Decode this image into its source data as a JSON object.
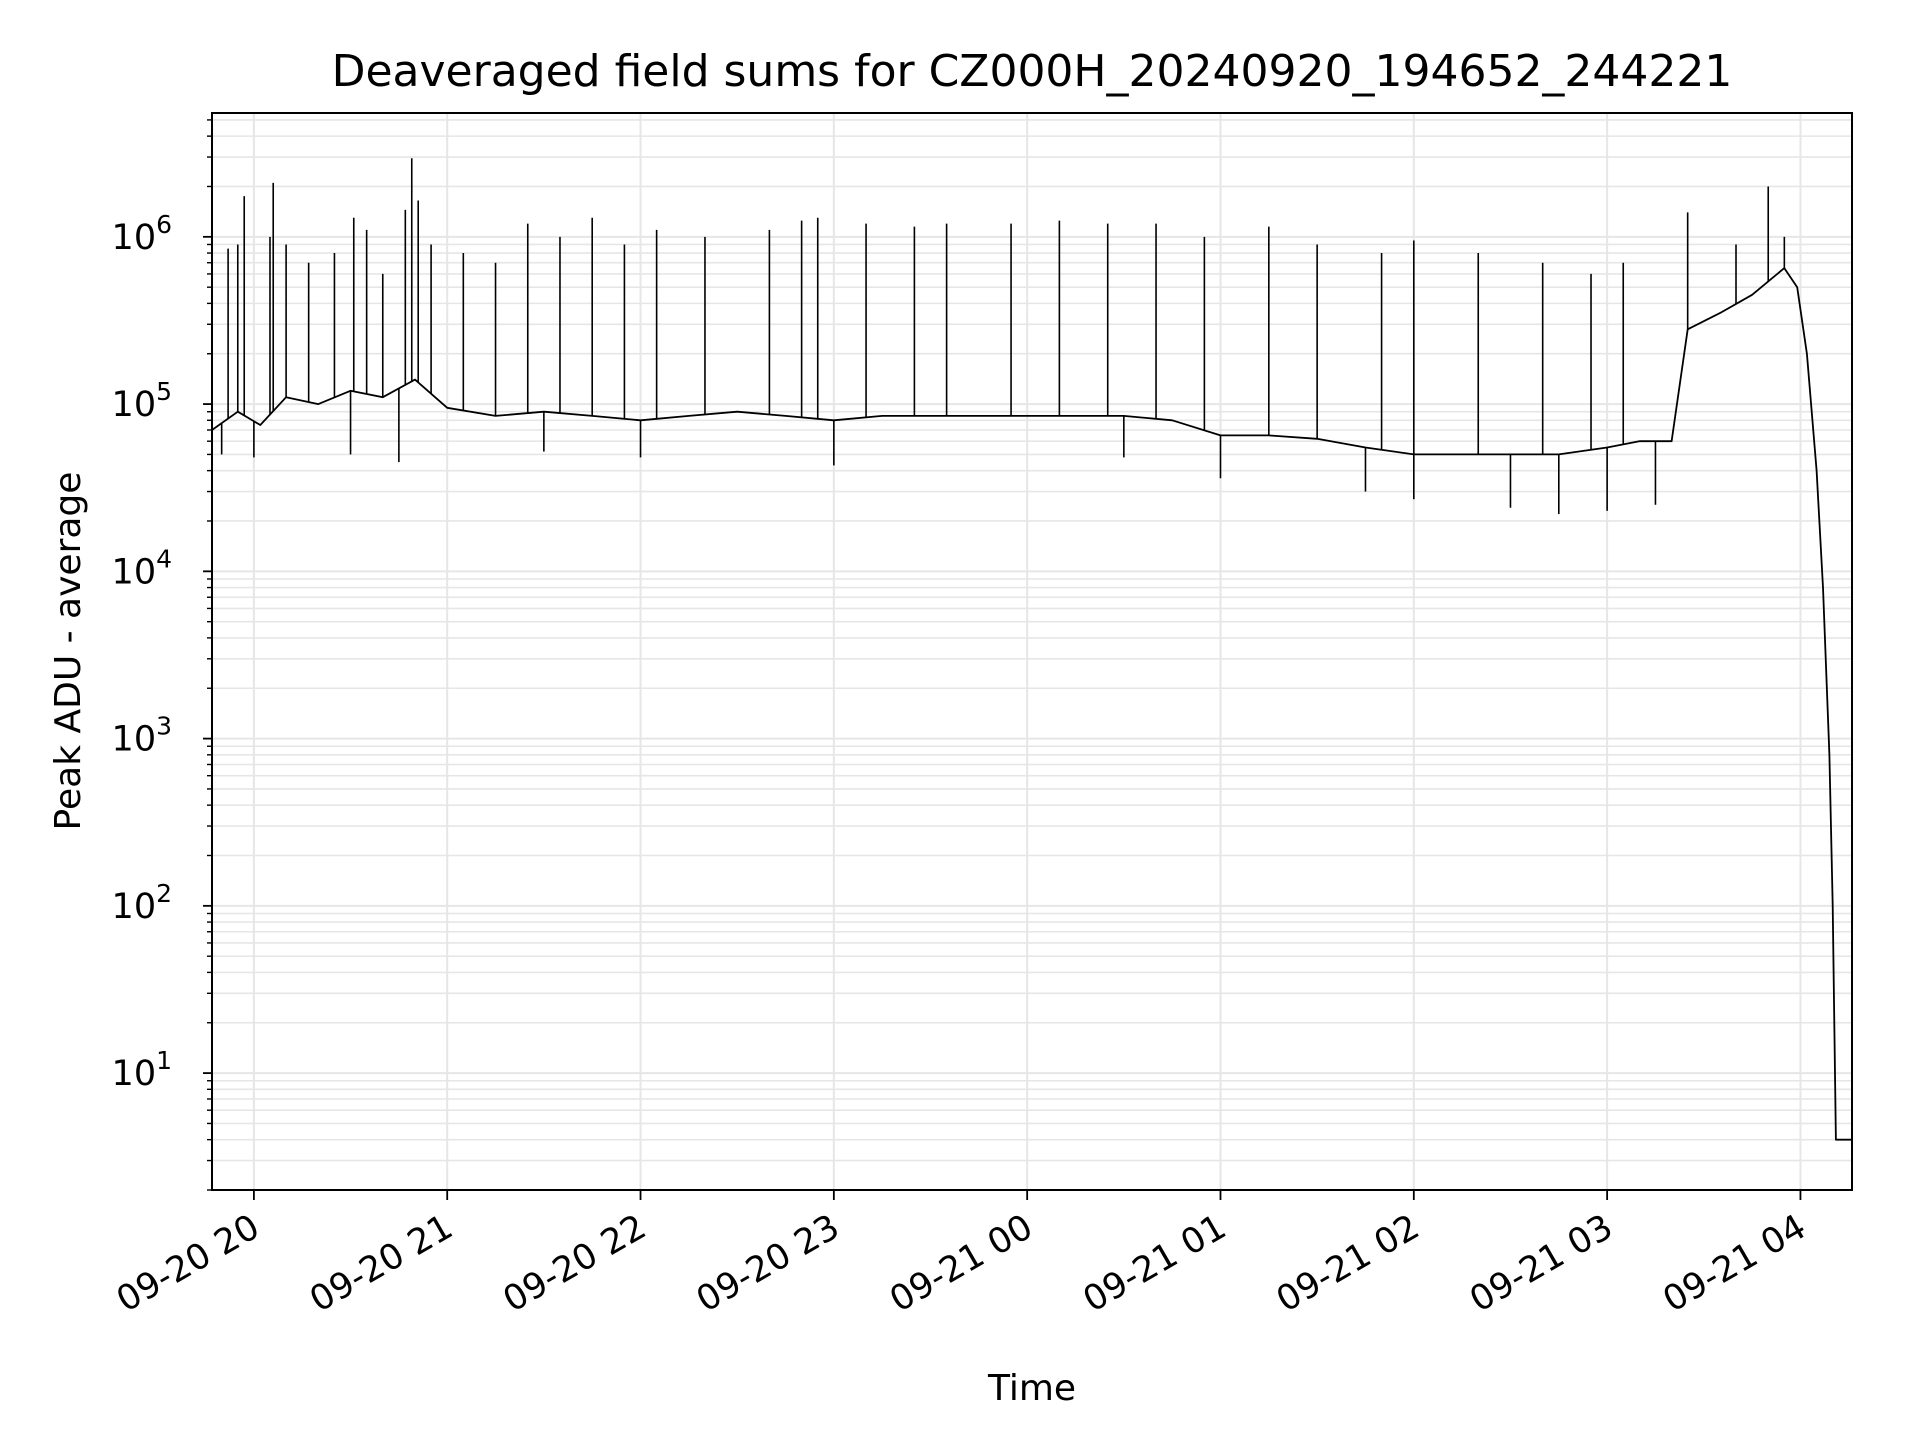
{
  "chart_data": {
    "type": "line",
    "title": "Deaveraged field sums for CZ000H_20240920_194652_244221",
    "xlabel": "Time",
    "ylabel": "Peak ADU - average",
    "yscale": "log",
    "ylim": [
      2,
      5500000
    ],
    "xlim": [
      "2024-09-20 19:47",
      "2024-09-21 04:16"
    ],
    "grid": true,
    "line_color": "#000000",
    "grid_color": "#e6e6e6",
    "x_ticks": [
      {
        "value": "2024-09-20 20:00",
        "label": "09-20 20"
      },
      {
        "value": "2024-09-20 21:00",
        "label": "09-20 21"
      },
      {
        "value": "2024-09-20 22:00",
        "label": "09-20 22"
      },
      {
        "value": "2024-09-20 23:00",
        "label": "09-20 23"
      },
      {
        "value": "2024-09-21 00:00",
        "label": "09-21 00"
      },
      {
        "value": "2024-09-21 01:00",
        "label": "09-21 01"
      },
      {
        "value": "2024-09-21 02:00",
        "label": "09-21 02"
      },
      {
        "value": "2024-09-21 03:00",
        "label": "09-21 03"
      },
      {
        "value": "2024-09-21 04:00",
        "label": "09-21 04"
      }
    ],
    "y_ticks": [
      {
        "value": 10,
        "base": "10",
        "exp": "1"
      },
      {
        "value": 100,
        "base": "10",
        "exp": "2"
      },
      {
        "value": 1000,
        "base": "10",
        "exp": "3"
      },
      {
        "value": 10000,
        "base": "10",
        "exp": "4"
      },
      {
        "value": 100000,
        "base": "10",
        "exp": "5"
      },
      {
        "value": 1000000,
        "base": "10",
        "exp": "6"
      }
    ],
    "series": [
      {
        "values": [
          [
            "2024-09-20 19:47",
            70000
          ],
          [
            "2024-09-20 19:55",
            90000
          ],
          [
            "2024-09-20 20:02",
            75000
          ],
          [
            "2024-09-20 20:10",
            110000
          ],
          [
            "2024-09-20 20:20",
            100000
          ],
          [
            "2024-09-20 20:30",
            120000
          ],
          [
            "2024-09-20 20:40",
            110000
          ],
          [
            "2024-09-20 20:50",
            140000
          ],
          [
            "2024-09-20 21:00",
            95000
          ],
          [
            "2024-09-20 21:15",
            85000
          ],
          [
            "2024-09-20 21:30",
            90000
          ],
          [
            "2024-09-20 21:45",
            85000
          ],
          [
            "2024-09-20 22:00",
            80000
          ],
          [
            "2024-09-20 22:15",
            85000
          ],
          [
            "2024-09-20 22:30",
            90000
          ],
          [
            "2024-09-20 22:45",
            85000
          ],
          [
            "2024-09-20 23:00",
            80000
          ],
          [
            "2024-09-20 23:15",
            85000
          ],
          [
            "2024-09-20 23:30",
            85000
          ],
          [
            "2024-09-20 23:45",
            85000
          ],
          [
            "2024-09-21 00:00",
            85000
          ],
          [
            "2024-09-21 00:15",
            85000
          ],
          [
            "2024-09-21 00:30",
            85000
          ],
          [
            "2024-09-21 00:45",
            80000
          ],
          [
            "2024-09-21 01:00",
            65000
          ],
          [
            "2024-09-21 01:15",
            65000
          ],
          [
            "2024-09-21 01:30",
            62000
          ],
          [
            "2024-09-21 01:45",
            55000
          ],
          [
            "2024-09-21 02:00",
            50000
          ],
          [
            "2024-09-21 02:15",
            50000
          ],
          [
            "2024-09-21 02:30",
            50000
          ],
          [
            "2024-09-21 02:45",
            50000
          ],
          [
            "2024-09-21 03:00",
            55000
          ],
          [
            "2024-09-21 03:10",
            60000
          ],
          [
            "2024-09-21 03:20",
            60000
          ],
          [
            "2024-09-21 03:25",
            280000
          ],
          [
            "2024-09-21 03:35",
            350000
          ],
          [
            "2024-09-21 03:45",
            450000
          ],
          [
            "2024-09-21 03:55",
            650000
          ],
          [
            "2024-09-21 03:59",
            500000
          ],
          [
            "2024-09-21 04:02",
            200000
          ],
          [
            "2024-09-21 04:05",
            40000
          ],
          [
            "2024-09-21 04:07",
            8000
          ],
          [
            "2024-09-21 04:09",
            800
          ],
          [
            "2024-09-21 04:10",
            100
          ],
          [
            "2024-09-21 04:11",
            4
          ],
          [
            "2024-09-21 04:16",
            4
          ]
        ],
        "spikes": [
          [
            "2024-09-20 19:52",
            850000
          ],
          [
            "2024-09-20 19:55",
            900000
          ],
          [
            "2024-09-20 19:57",
            1750000
          ],
          [
            "2024-09-20 20:05",
            1000000
          ],
          [
            "2024-09-20 20:06",
            2100000
          ],
          [
            "2024-09-20 20:10",
            900000
          ],
          [
            "2024-09-20 20:17",
            700000
          ],
          [
            "2024-09-20 20:25",
            800000
          ],
          [
            "2024-09-20 20:31",
            1300000
          ],
          [
            "2024-09-20 20:35",
            1100000
          ],
          [
            "2024-09-20 20:40",
            600000
          ],
          [
            "2024-09-20 20:47",
            1450000
          ],
          [
            "2024-09-20 20:49",
            2950000
          ],
          [
            "2024-09-20 20:51",
            1650000
          ],
          [
            "2024-09-20 20:55",
            900000
          ],
          [
            "2024-09-20 21:05",
            800000
          ],
          [
            "2024-09-20 21:15",
            700000
          ],
          [
            "2024-09-20 21:25",
            1200000
          ],
          [
            "2024-09-20 21:35",
            1000000
          ],
          [
            "2024-09-20 21:45",
            1300000
          ],
          [
            "2024-09-20 21:55",
            900000
          ],
          [
            "2024-09-20 22:05",
            1100000
          ],
          [
            "2024-09-20 22:20",
            1000000
          ],
          [
            "2024-09-20 22:40",
            1100000
          ],
          [
            "2024-09-20 22:50",
            1250000
          ],
          [
            "2024-09-20 22:55",
            1300000
          ],
          [
            "2024-09-20 23:10",
            1200000
          ],
          [
            "2024-09-20 23:25",
            1150000
          ],
          [
            "2024-09-20 23:35",
            1200000
          ],
          [
            "2024-09-20 23:55",
            1200000
          ],
          [
            "2024-09-21 00:10",
            1250000
          ],
          [
            "2024-09-21 00:25",
            1200000
          ],
          [
            "2024-09-21 00:40",
            1200000
          ],
          [
            "2024-09-21 00:55",
            1000000
          ],
          [
            "2024-09-21 01:15",
            1150000
          ],
          [
            "2024-09-21 01:30",
            900000
          ],
          [
            "2024-09-21 01:50",
            800000
          ],
          [
            "2024-09-21 02:00",
            950000
          ],
          [
            "2024-09-21 02:20",
            800000
          ],
          [
            "2024-09-21 02:40",
            700000
          ],
          [
            "2024-09-21 02:55",
            600000
          ],
          [
            "2024-09-21 03:05",
            700000
          ],
          [
            "2024-09-21 03:25",
            1400000
          ],
          [
            "2024-09-21 03:40",
            900000
          ],
          [
            "2024-09-21 03:50",
            2000000
          ],
          [
            "2024-09-21 03:55",
            1000000
          ]
        ],
        "dips": [
          [
            "2024-09-20 19:50",
            50000
          ],
          [
            "2024-09-20 20:00",
            48000
          ],
          [
            "2024-09-20 20:30",
            50000
          ],
          [
            "2024-09-20 20:45",
            45000
          ],
          [
            "2024-09-20 21:30",
            52000
          ],
          [
            "2024-09-20 22:00",
            48000
          ],
          [
            "2024-09-20 23:00",
            43000
          ],
          [
            "2024-09-21 00:30",
            48000
          ],
          [
            "2024-09-21 01:00",
            36000
          ],
          [
            "2024-09-21 01:45",
            30000
          ],
          [
            "2024-09-21 02:00",
            27000
          ],
          [
            "2024-09-21 02:30",
            24000
          ],
          [
            "2024-09-21 02:45",
            22000
          ],
          [
            "2024-09-21 03:00",
            23000
          ],
          [
            "2024-09-21 03:15",
            25000
          ]
        ]
      }
    ]
  }
}
